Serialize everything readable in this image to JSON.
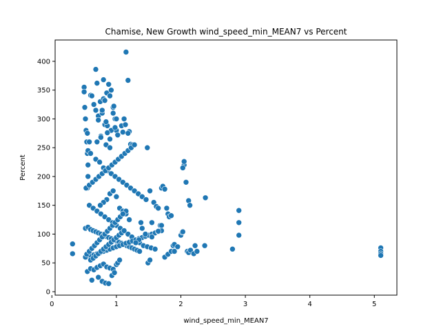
{
  "chart_data": {
    "type": "scatter",
    "title": "Chamise, New Growth wind_speed_min_MEAN7 vs Percent",
    "xlabel": "wind_speed_min_MEAN7",
    "ylabel": "Percent",
    "xlim": [
      0.05,
      5.35
    ],
    "ylim": [
      -6,
      437
    ],
    "xticks": [
      0,
      1,
      2,
      3,
      4,
      5
    ],
    "yticks": [
      0,
      50,
      100,
      150,
      200,
      250,
      300,
      350,
      400
    ],
    "grid": false,
    "legend": "none",
    "marker_color": "#1f77b4",
    "marker_edge_color": "#ffffff",
    "series": [
      {
        "x": [
          0.32,
          0.32,
          0.5,
          0.5,
          0.51,
          0.52,
          0.53,
          0.54,
          0.55,
          0.56,
          0.56,
          0.55,
          0.6,
          0.62,
          0.65,
          0.68,
          0.7,
          0.72,
          0.75,
          0.78,
          0.8,
          0.82,
          0.85,
          0.88,
          0.9,
          0.92,
          0.95,
          0.98,
          1.0,
          0.55,
          0.6,
          0.65,
          0.7,
          0.75,
          0.8,
          0.85,
          0.9,
          0.95,
          1.0,
          0.72,
          0.62,
          0.78,
          0.83,
          0.88,
          0.93,
          0.97,
          1.02,
          1.05,
          0.7,
          0.76,
          0.84,
          0.9,
          1.08,
          1.12,
          1.15,
          1.18,
          1.2,
          1.22,
          1.25,
          1.1,
          0.68,
          0.74,
          0.8,
          0.86,
          0.92,
          0.98,
          1.04,
          1.1,
          1.16,
          1.22,
          1.28,
          1.34,
          1.4,
          1.46,
          0.58,
          0.64,
          0.7,
          0.76,
          0.82,
          0.88,
          0.94,
          1.0,
          1.06,
          1.12,
          1.18,
          1.24,
          1.3,
          1.36,
          1.42,
          1.48,
          1.54,
          1.6,
          0.52,
          0.56,
          0.6,
          0.64,
          0.68,
          0.72,
          0.76,
          0.8,
          0.84,
          0.88,
          0.92,
          0.96,
          1.0,
          1.04,
          1.08,
          1.12,
          1.16,
          1.2,
          1.24,
          1.28,
          1.32,
          1.36,
          0.55,
          0.6,
          0.65,
          0.7,
          0.75,
          0.8,
          0.85,
          0.9,
          0.95,
          1.0,
          1.05,
          1.1,
          1.15,
          1.2,
          1.25,
          1.3,
          1.35,
          1.4,
          1.45,
          1.5,
          1.55,
          1.6,
          1.65,
          1.7,
          0.53,
          0.58,
          0.63,
          0.68,
          0.73,
          0.78,
          0.83,
          0.88,
          0.93,
          0.98,
          1.03,
          1.08,
          1.13,
          1.18,
          1.23,
          1.28,
          0.9,
          0.95,
          1.0,
          0.85,
          0.8,
          0.75,
          1.05,
          1.1,
          1.15,
          1.48,
          1.52,
          1.55,
          1.58,
          1.62,
          1.65,
          1.68,
          1.7,
          1.72,
          1.75,
          1.78,
          1.8,
          1.82,
          1.85,
          1.88,
          1.9,
          1.95,
          2.0,
          2.02,
          2.05,
          2.05,
          2.08,
          2.1,
          2.12,
          2.15,
          2.2,
          2.22,
          2.25,
          2.12,
          2.14,
          2.03,
          2.03,
          2.38,
          2.37,
          2.8,
          2.9,
          2.9,
          2.9,
          5.1,
          5.1,
          5.1,
          5.1,
          1.49,
          1.52,
          1.75,
          1.8,
          1.85,
          1.45,
          1.38,
          1.4,
          1.35,
          1.3,
          1.55,
          1.65,
          1.7,
          1.9,
          1.2,
          1.15,
          0.72,
          0.8,
          0.86,
          0.95,
          0.78,
          0.92,
          0.84,
          0.9,
          0.55,
          0.58,
          0.56,
          0.6,
          0.96,
          1.0,
          0.68,
          0.82,
          1.14,
          1.18,
          0.86,
          0.98,
          0.76,
          1.02,
          0.52,
          0.54,
          0.58,
          0.62,
          0.66,
          0.7,
          0.74,
          0.78,
          0.82,
          0.86,
          0.9,
          0.94,
          0.98,
          1.02,
          1.06,
          1.1,
          0.6,
          0.64,
          0.68,
          0.72,
          0.76,
          0.8,
          0.84,
          0.88,
          0.92,
          0.96,
          1.0,
          1.04,
          1.08,
          1.12
        ],
        "y": [
          83,
          66,
          355,
          347,
          320,
          300,
          280,
          260,
          240,
          220,
          200,
          180,
          341,
          340,
          325,
          386,
          362,
          305,
          330,
          310,
          368,
          290,
          345,
          360,
          340,
          350,
          320,
          300,
          280,
          35,
          40,
          38,
          42,
          45,
          48,
          43,
          41,
          39,
          47,
          25,
          20,
          18,
          15,
          14,
          28,
          33,
          50,
          55,
          260,
          270,
          255,
          250,
          288,
          300,
          416,
          367,
          278,
          256,
          255,
          277,
          230,
          225,
          215,
          210,
          205,
          200,
          195,
          190,
          185,
          180,
          175,
          170,
          165,
          160,
          150,
          145,
          140,
          135,
          130,
          125,
          120,
          115,
          110,
          105,
          100,
          95,
          90,
          85,
          80,
          78,
          76,
          74,
          110,
          112,
          108,
          106,
          104,
          102,
          100,
          98,
          96,
          94,
          92,
          90,
          88,
          86,
          84,
          82,
          80,
          78,
          76,
          74,
          72,
          70,
          60,
          62,
          64,
          66,
          68,
          70,
          72,
          74,
          76,
          78,
          80,
          82,
          84,
          86,
          88,
          90,
          92,
          94,
          96,
          98,
          100,
          102,
          104,
          106,
          180,
          185,
          190,
          195,
          200,
          205,
          210,
          215,
          220,
          225,
          230,
          235,
          240,
          245,
          250,
          255,
          170,
          175,
          165,
          160,
          155,
          150,
          145,
          140,
          135,
          250,
          175,
          120,
          155,
          148,
          145,
          115,
          180,
          183,
          178,
          145,
          135,
          130,
          132,
          80,
          82,
          78,
          98,
          103,
          220,
          226,
          190,
          70,
          68,
          72,
          66,
          80,
          70,
          158,
          150,
          215,
          104,
          163,
          80,
          74,
          141,
          120,
          98,
          76,
          70,
          66,
          63,
          50,
          55,
          60,
          65,
          70,
          100,
          120,
          110,
          90,
          85,
          95,
          105,
          115,
          70,
          125,
          140,
          298,
          335,
          288,
          310,
          315,
          280,
          295,
          265,
          275,
          260,
          245,
          240,
          322,
          300,
          315,
          332,
          290,
          275,
          276,
          285,
          268,
          272,
          60,
          65,
          70,
          75,
          80,
          85,
          90,
          95,
          100,
          105,
          110,
          115,
          120,
          125,
          130,
          135,
          55,
          58,
          62,
          66,
          70,
          74,
          78,
          82,
          86,
          90,
          94,
          98,
          102,
          106
        ]
      }
    ]
  }
}
